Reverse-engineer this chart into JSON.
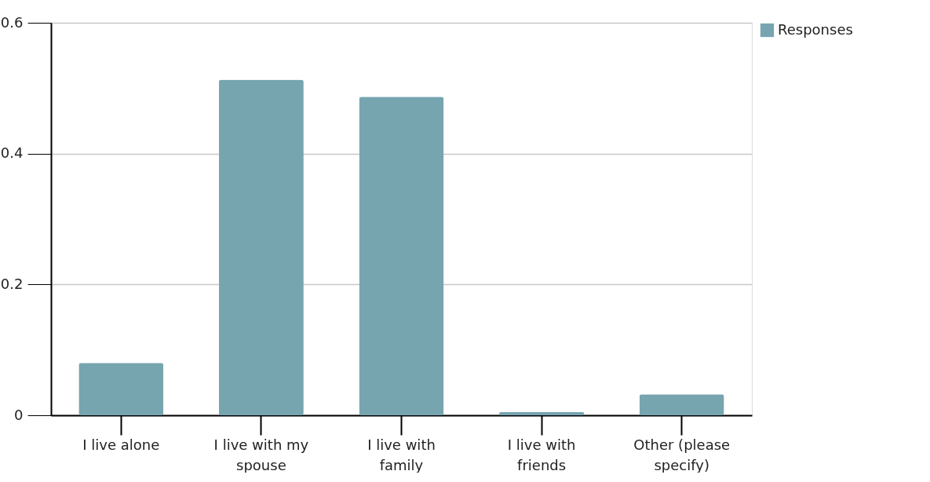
{
  "chart_data": {
    "type": "bar",
    "categories": [
      "I live alone",
      "I live with my spouse",
      "I live with family",
      "I live with friends",
      "Other (please specify)"
    ],
    "series": [
      {
        "name": "Responses",
        "color": "#76a5b0",
        "values": [
          0.08,
          0.513,
          0.487,
          0.005,
          0.032
        ]
      }
    ],
    "ylim": [
      0,
      0.6
    ],
    "yticks": [
      0,
      {
        "value": 0.2,
        "label": "0.2"
      },
      {
        "value": 0.4,
        "label": "0.4"
      },
      {
        "value": 0.6,
        "label": "0.6"
      }
    ],
    "grid": "y",
    "legend": "top right"
  }
}
